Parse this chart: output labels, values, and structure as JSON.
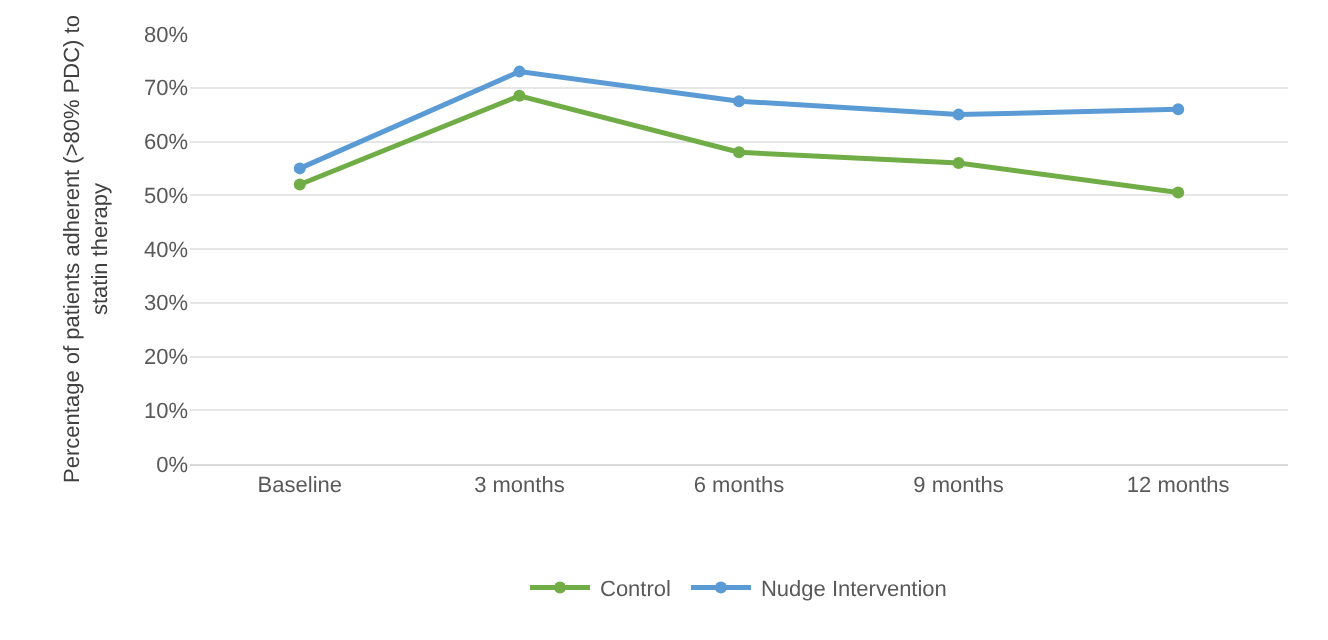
{
  "chart_data": {
    "type": "line",
    "ylabel": "Percentage of patients adherent (>80% PDC) to statin therapy",
    "categories": [
      "Baseline",
      "3 months",
      "6 months",
      "9 months",
      "12 months"
    ],
    "series": [
      {
        "name": "Control",
        "color": "#70ad47",
        "values": [
          52,
          68.5,
          58,
          56,
          50.5
        ]
      },
      {
        "name": "Nudge Intervention",
        "color": "#5b9bd5",
        "values": [
          55,
          73,
          67.5,
          65,
          66
        ]
      }
    ],
    "ylim": [
      0,
      80
    ],
    "yticks": [
      {
        "value": 0,
        "label": "0%"
      },
      {
        "value": 10,
        "label": "10%"
      },
      {
        "value": 20,
        "label": "20%"
      },
      {
        "value": 30,
        "label": "30%"
      },
      {
        "value": 40,
        "label": "40%"
      },
      {
        "value": 50,
        "label": "50%"
      },
      {
        "value": 60,
        "label": "60%"
      },
      {
        "value": 70,
        "label": "70%"
      },
      {
        "value": 80,
        "label": "80%"
      }
    ],
    "grid": "y",
    "legend": "bottom",
    "marker": "circle",
    "line_style": "solid"
  }
}
